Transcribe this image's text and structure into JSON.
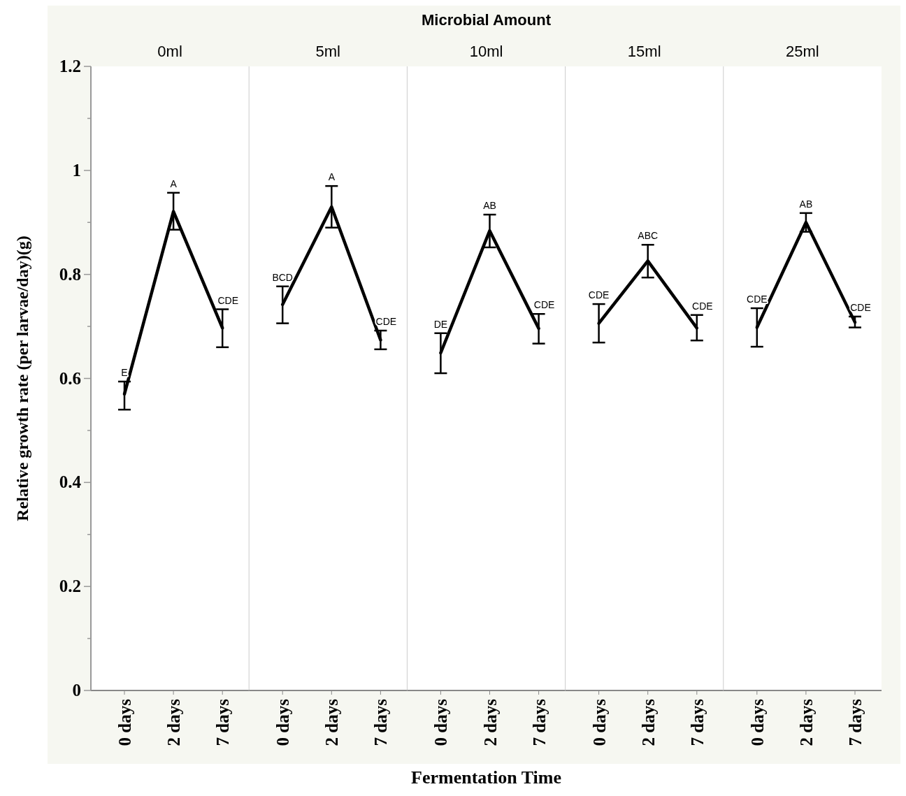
{
  "chart_data": [
    {
      "type": "line",
      "title": "0ml",
      "ylabel": "Relative growth rate (per larvae/day)(g)",
      "categories": [
        "0 days",
        "2 days",
        "7 days"
      ],
      "ylim": [
        0,
        1.2
      ],
      "yticks": [
        0,
        {
          "value": 0.1,
          "label": null
        },
        {
          "value": 0.2,
          "label": "0.2"
        },
        {
          "value": 0.3,
          "label": null
        },
        {
          "value": 0.4,
          "label": "0.4"
        },
        {
          "value": 0.5,
          "label": null
        },
        {
          "value": 0.6,
          "label": "0.6"
        },
        {
          "value": 0.7,
          "label": null
        },
        {
          "value": 0.8,
          "label": "0.8"
        },
        {
          "value": 0.9,
          "label": null
        },
        1,
        {
          "value": 1.1,
          "label": null
        },
        {
          "value": 1.2,
          "label": "1.2"
        }
      ],
      "series": [
        {
          "color": "#000000",
          "values": [
            0.57,
            0.921,
            0.697
          ],
          "errors": [
            [
              0.54,
              0.594
            ],
            [
              0.886,
              0.957
            ],
            [
              0.66,
              0.733
            ]
          ]
        }
      ],
      "annotations": [
        {
          "text": "E",
          "x": "0 days",
          "y": 0.594
        },
        {
          "text": "A",
          "x": "2 days",
          "y": 0.957
        },
        {
          "text": "CDE",
          "x": "7 days",
          "y": 0.733
        }
      ]
    },
    {
      "type": "line",
      "title": "5ml",
      "categories": [
        "0 days",
        "2 days",
        "7 days"
      ],
      "ylim": [
        0,
        1.2
      ],
      "tick_labels": "x",
      "series": [
        {
          "color": "#000000",
          "values": [
            0.742,
            0.93,
            0.674
          ],
          "errors": [
            [
              0.706,
              0.777
            ],
            [
              0.89,
              0.97
            ],
            [
              0.656,
              0.692
            ]
          ]
        }
      ],
      "annotations": [
        {
          "text": "BCD",
          "x": "0 days",
          "y": 0.777
        },
        {
          "text": "A",
          "x": "2 days",
          "y": 0.97
        },
        {
          "text": "CDE",
          "x": "7 days",
          "y": 0.692
        }
      ]
    },
    {
      "type": "line",
      "title": "10ml",
      "xlabel": "Fermentation Time",
      "categories": [
        "0 days",
        "2 days",
        "7 days"
      ],
      "ylim": [
        0,
        1.2
      ],
      "tick_labels": "x",
      "series": [
        {
          "color": "#000000",
          "values": [
            0.649,
            0.884,
            0.696
          ],
          "errors": [
            [
              0.61,
              0.687
            ],
            [
              0.852,
              0.915
            ],
            [
              0.667,
              0.724
            ]
          ]
        }
      ],
      "annotations": [
        "Microbial Amount",
        {
          "text": "DE",
          "x": "0 days",
          "y": 0.687
        },
        {
          "text": "AB",
          "x": "2 days",
          "y": 0.915
        },
        {
          "text": "CDE",
          "x": "7 days",
          "y": 0.724
        }
      ]
    },
    {
      "type": "line",
      "title": "15ml",
      "categories": [
        "0 days",
        "2 days",
        "7 days"
      ],
      "ylim": [
        0,
        1.2
      ],
      "tick_labels": "x",
      "series": [
        {
          "color": "#000000",
          "values": [
            0.706,
            0.826,
            0.697
          ],
          "errors": [
            [
              0.669,
              0.743
            ],
            [
              0.794,
              0.857
            ],
            [
              0.673,
              0.722
            ]
          ]
        }
      ],
      "annotations": [
        {
          "text": "CDE",
          "x": "0 days",
          "y": 0.743
        },
        {
          "text": "ABC",
          "x": "2 days",
          "y": 0.857
        },
        {
          "text": "CDE",
          "x": "7 days",
          "y": 0.722
        }
      ]
    },
    {
      "type": "line",
      "title": "25ml",
      "categories": [
        "0 days",
        "2 days",
        "7 days"
      ],
      "ylim": [
        0,
        1.2
      ],
      "tick_labels": "x",
      "series": [
        {
          "color": "#000000",
          "values": [
            0.698,
            0.9,
            0.708
          ],
          "errors": [
            [
              0.661,
              0.735
            ],
            [
              0.882,
              0.918
            ],
            [
              0.698,
              0.719
            ]
          ]
        }
      ],
      "annotations": [
        {
          "text": "CDE",
          "x": "0 days",
          "y": 0.735
        },
        {
          "text": "AB",
          "x": "2 days",
          "y": 0.918
        },
        {
          "text": "CDE",
          "x": "7 days",
          "y": 0.719
        }
      ]
    }
  ]
}
